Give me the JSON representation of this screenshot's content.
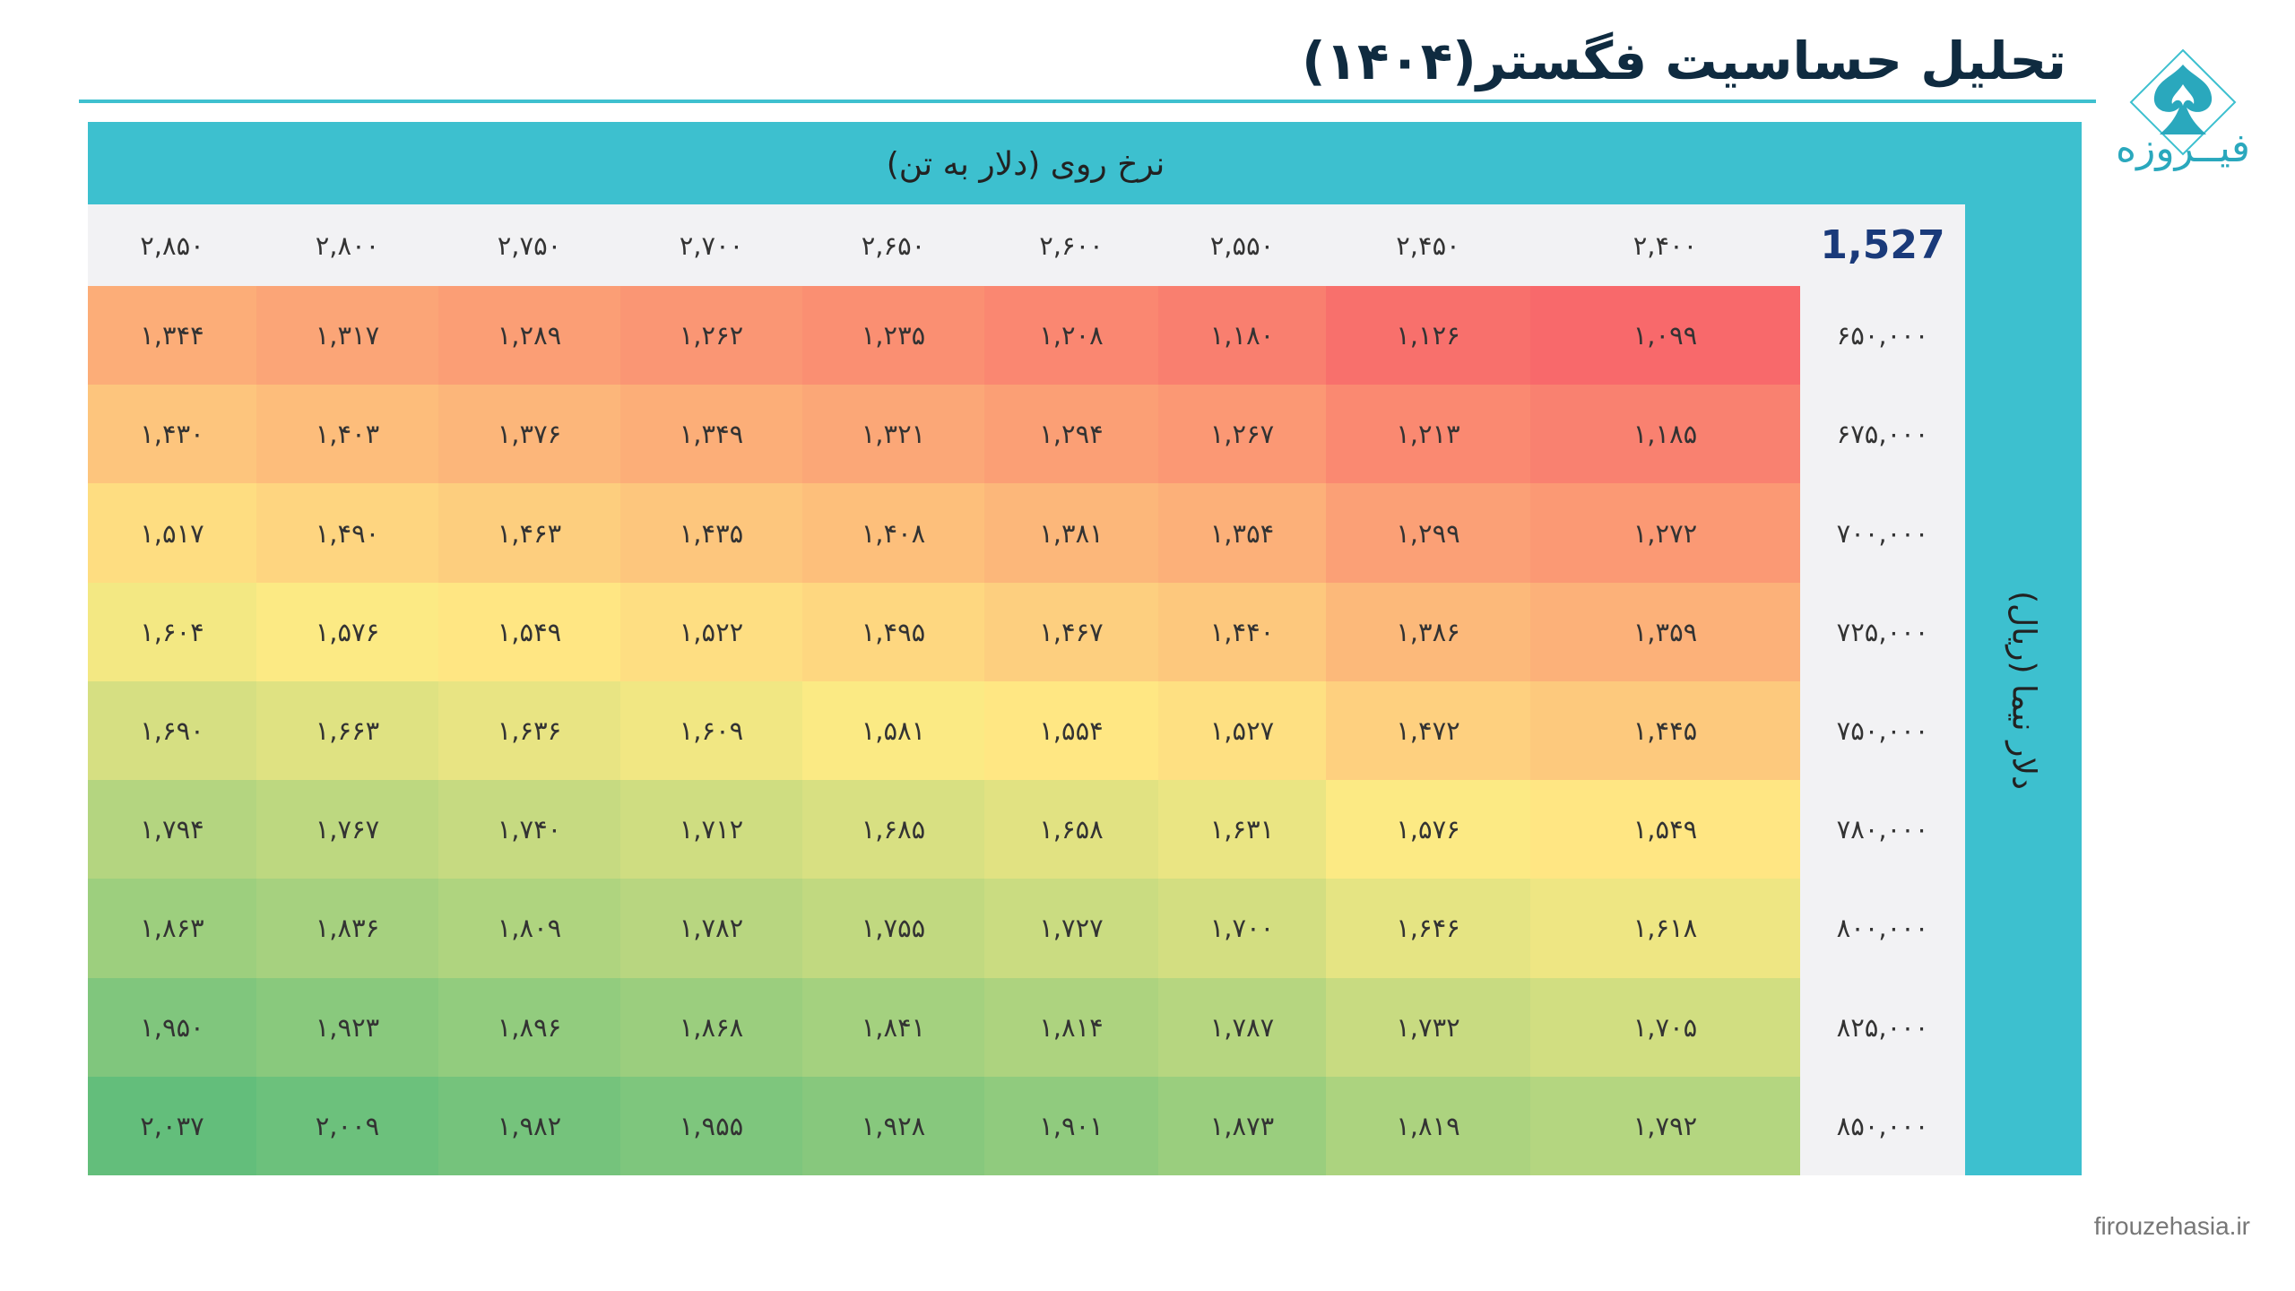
{
  "title": "تحلیل حساسیت فگستر(۱۴۰۴)",
  "brand": {
    "logo_text": "فیــروزه",
    "footer_url": "firouzehasia.ir",
    "accent_color": "#3dc0cf"
  },
  "chart_data": {
    "type": "heatmap",
    "title": "تحلیل حساسیت فگستر(۱۴۰۴)",
    "xlabel": "نرخ روی (دلار به تن)",
    "ylabel": "دلار نیما (ریال)",
    "base_value": "1,527",
    "x": [
      "۲,۴۰۰",
      "۲,۴۵۰",
      "۲,۵۵۰",
      "۲,۶۰۰",
      "۲,۶۵۰",
      "۲,۷۰۰",
      "۲,۷۵۰",
      "۲,۸۰۰",
      "۲,۸۵۰"
    ],
    "y": [
      "۶۵۰,۰۰۰",
      "۶۷۵,۰۰۰",
      "۷۰۰,۰۰۰",
      "۷۲۵,۰۰۰",
      "۷۵۰,۰۰۰",
      "۷۸۰,۰۰۰",
      "۸۰۰,۰۰۰",
      "۸۲۵,۰۰۰",
      "۸۵۰,۰۰۰"
    ],
    "values": [
      [
        1099,
        1126,
        1180,
        1208,
        1235,
        1262,
        1289,
        1317,
        1344
      ],
      [
        1185,
        1213,
        1267,
        1294,
        1321,
        1349,
        1376,
        1403,
        1430
      ],
      [
        1272,
        1299,
        1354,
        1381,
        1408,
        1435,
        1463,
        1490,
        1517
      ],
      [
        1359,
        1386,
        1440,
        1467,
        1495,
        1522,
        1549,
        1576,
        1604
      ],
      [
        1445,
        1472,
        1527,
        1554,
        1581,
        1609,
        1636,
        1663,
        1690
      ],
      [
        1549,
        1576,
        1631,
        1658,
        1685,
        1712,
        1740,
        1767,
        1794
      ],
      [
        1618,
        1646,
        1700,
        1727,
        1755,
        1782,
        1809,
        1836,
        1863
      ],
      [
        1705,
        1732,
        1787,
        1814,
        1841,
        1868,
        1896,
        1923,
        1950
      ],
      [
        1792,
        1819,
        1873,
        1901,
        1928,
        1955,
        1982,
        2009,
        2037
      ]
    ],
    "value_labels": [
      [
        "۱,۰۹۹",
        "۱,۱۲۶",
        "۱,۱۸۰",
        "۱,۲۰۸",
        "۱,۲۳۵",
        "۱,۲۶۲",
        "۱,۲۸۹",
        "۱,۳۱۷",
        "۱,۳۴۴"
      ],
      [
        "۱,۱۸۵",
        "۱,۲۱۳",
        "۱,۲۶۷",
        "۱,۲۹۴",
        "۱,۳۲۱",
        "۱,۳۴۹",
        "۱,۳۷۶",
        "۱,۴۰۳",
        "۱,۴۳۰"
      ],
      [
        "۱,۲۷۲",
        "۱,۲۹۹",
        "۱,۳۵۴",
        "۱,۳۸۱",
        "۱,۴۰۸",
        "۱,۴۳۵",
        "۱,۴۶۳",
        "۱,۴۹۰",
        "۱,۵۱۷"
      ],
      [
        "۱,۳۵۹",
        "۱,۳۸۶",
        "۱,۴۴۰",
        "۱,۴۶۷",
        "۱,۴۹۵",
        "۱,۵۲۲",
        "۱,۵۴۹",
        "۱,۵۷۶",
        "۱,۶۰۴"
      ],
      [
        "۱,۴۴۵",
        "۱,۴۷۲",
        "۱,۵۲۷",
        "۱,۵۵۴",
        "۱,۵۸۱",
        "۱,۶۰۹",
        "۱,۶۳۶",
        "۱,۶۶۳",
        "۱,۶۹۰"
      ],
      [
        "۱,۵۴۹",
        "۱,۵۷۶",
        "۱,۶۳۱",
        "۱,۶۵۸",
        "۱,۶۸۵",
        "۱,۷۱۲",
        "۱,۷۴۰",
        "۱,۷۶۷",
        "۱,۷۹۴"
      ],
      [
        "۱,۶۱۸",
        "۱,۶۴۶",
        "۱,۷۰۰",
        "۱,۷۲۷",
        "۱,۷۵۵",
        "۱,۷۸۲",
        "۱,۸۰۹",
        "۱,۸۳۶",
        "۱,۸۶۳"
      ],
      [
        "۱,۷۰۵",
        "۱,۷۳۲",
        "۱,۷۸۷",
        "۱,۸۱۴",
        "۱,۸۴۱",
        "۱,۸۶۸",
        "۱,۸۹۶",
        "۱,۹۲۳",
        "۱,۹۵۰"
      ],
      [
        "۱,۷۹۲",
        "۱,۸۱۹",
        "۱,۸۷۳",
        "۱,۹۰۱",
        "۱,۹۲۸",
        "۱,۹۵۵",
        "۱,۹۸۲",
        "۲,۰۰۹",
        "۲,۰۳۷"
      ]
    ],
    "colorscale": {
      "low": "#f8696b",
      "mid": "#ffeb84",
      "high": "#63be7b"
    },
    "grid": false
  }
}
